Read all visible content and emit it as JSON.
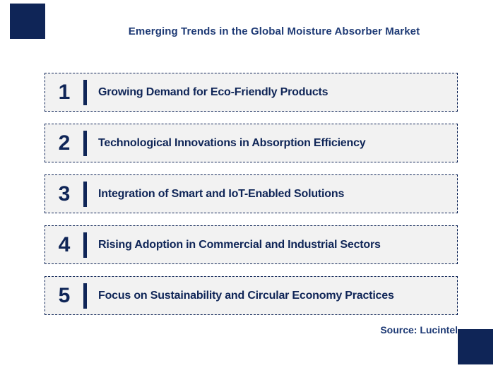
{
  "title": "Emerging Trends in the Global Moisture Absorber Market",
  "items": [
    {
      "number": "1",
      "label": "Growing Demand for Eco-Friendly Products"
    },
    {
      "number": "2",
      "label": "Technological Innovations in Absorption Efficiency"
    },
    {
      "number": "3",
      "label": "Integration of Smart and IoT-Enabled Solutions"
    },
    {
      "number": "4",
      "label": "Rising Adoption in Commercial and Industrial Sectors"
    },
    {
      "number": "5",
      "label": "Focus on Sustainability and Circular Economy Practices"
    }
  ],
  "source": "Source: Lucintel",
  "colors": {
    "navy": "#0F2557",
    "title_navy": "#1E3A75",
    "box_background": "#F2F2F2",
    "page_background": "#FFFFFF"
  }
}
